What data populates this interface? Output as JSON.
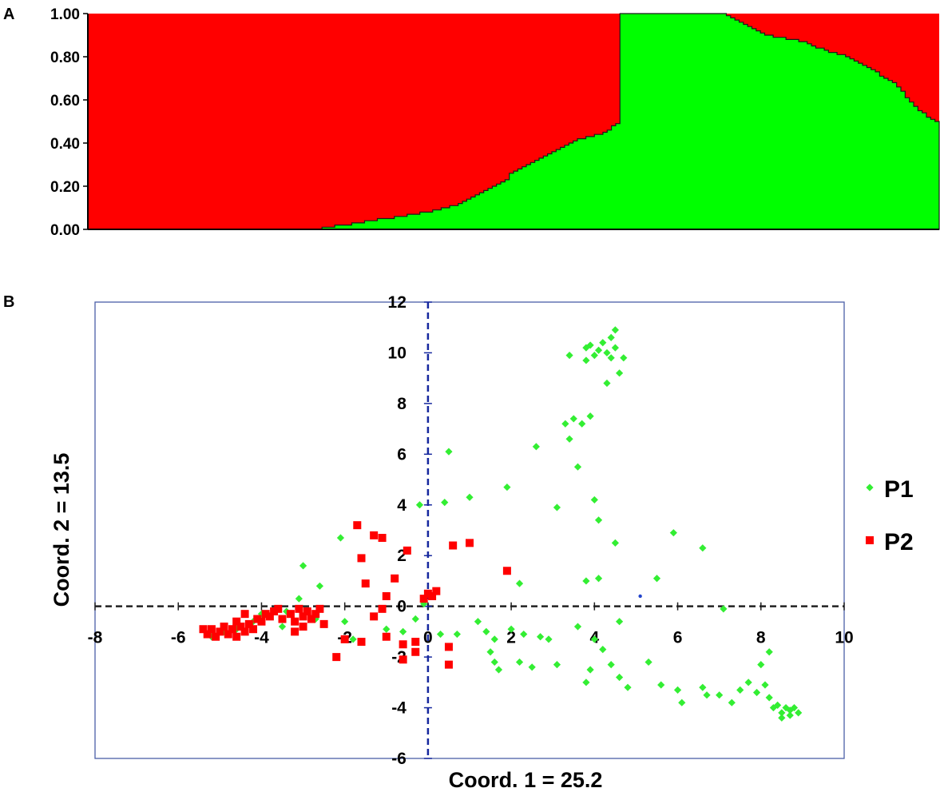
{
  "chart_data": [
    {
      "panel": "A",
      "type": "area",
      "yticks": [
        "0.00",
        "0.20",
        "0.40",
        "0.60",
        "0.80",
        "1.00"
      ],
      "ylim": [
        0,
        1
      ],
      "n_samples": 200,
      "series": [
        {
          "color": "#00ff00",
          "breakpoints": [
            [
              0.0,
              0.0
            ],
            [
              0.265,
              0.0
            ],
            [
              0.3,
              0.02
            ],
            [
              0.4,
              0.08
            ],
            [
              0.42,
              0.1
            ],
            [
              0.44,
              0.12
            ],
            [
              0.45,
              0.15
            ],
            [
              0.47,
              0.18
            ],
            [
              0.48,
              0.2
            ],
            [
              0.49,
              0.22
            ],
            [
              0.5,
              0.27
            ],
            [
              0.51,
              0.29
            ],
            [
              0.54,
              0.35
            ],
            [
              0.56,
              0.39
            ],
            [
              0.58,
              0.42
            ],
            [
              0.61,
              0.45
            ],
            [
              0.625,
              0.5
            ],
            [
              0.625,
              1.0
            ],
            [
              0.75,
              1.0
            ],
            [
              0.77,
              0.95
            ],
            [
              0.8,
              0.9
            ],
            [
              0.84,
              0.87
            ],
            [
              0.86,
              0.84
            ],
            [
              0.9,
              0.79
            ],
            [
              0.93,
              0.72
            ],
            [
              0.95,
              0.67
            ],
            [
              0.97,
              0.58
            ],
            [
              0.985,
              0.53
            ],
            [
              1.0,
              0.5
            ]
          ]
        },
        {
          "color": "#ff0000",
          "fill": "remainder"
        }
      ]
    },
    {
      "panel": "B",
      "type": "scatter",
      "xlabel": "Coord. 1 = 25.2",
      "ylabel": "Coord. 2 = 13.5",
      "xlim": [
        -8,
        10
      ],
      "ylim": [
        -6,
        12
      ],
      "xticks": [
        "-8",
        "-6",
        "-4",
        "-2",
        "0",
        "2",
        "4",
        "6",
        "8",
        "10"
      ],
      "yticks": [
        "-6",
        "-4",
        "-2",
        "0",
        "2",
        "4",
        "6",
        "8",
        "10",
        "12"
      ],
      "series": [
        {
          "name": "P1",
          "color": "#33ee33",
          "marker": "diamond",
          "points": [
            [
              3.4,
              9.9
            ],
            [
              3.8,
              10.2
            ],
            [
              3.9,
              10.3
            ],
            [
              4.0,
              9.9
            ],
            [
              4.1,
              10.1
            ],
            [
              4.2,
              10.4
            ],
            [
              4.3,
              10.0
            ],
            [
              4.4,
              10.6
            ],
            [
              4.5,
              10.9
            ],
            [
              4.5,
              10.2
            ],
            [
              4.4,
              9.8
            ],
            [
              4.7,
              9.8
            ],
            [
              4.6,
              9.2
            ],
            [
              4.3,
              8.8
            ],
            [
              3.8,
              9.7
            ],
            [
              3.3,
              7.2
            ],
            [
              3.5,
              7.4
            ],
            [
              3.7,
              7.2
            ],
            [
              3.9,
              7.5
            ],
            [
              3.4,
              6.6
            ],
            [
              2.6,
              6.3
            ],
            [
              3.6,
              5.5
            ],
            [
              0.5,
              6.1
            ],
            [
              0.4,
              4.1
            ],
            [
              1.0,
              4.3
            ],
            [
              -0.2,
              4.0
            ],
            [
              1.9,
              4.7
            ],
            [
              3.1,
              3.9
            ],
            [
              4.0,
              4.2
            ],
            [
              4.1,
              3.4
            ],
            [
              4.5,
              2.5
            ],
            [
              5.9,
              2.9
            ],
            [
              6.6,
              2.3
            ],
            [
              5.5,
              1.1
            ],
            [
              4.1,
              1.1
            ],
            [
              3.8,
              1.0
            ],
            [
              2.2,
              0.9
            ],
            [
              -3.0,
              1.6
            ],
            [
              -2.6,
              0.8
            ],
            [
              -2.1,
              2.7
            ],
            [
              -0.1,
              0.1
            ],
            [
              -3.1,
              0.3
            ],
            [
              -3.4,
              -0.2
            ],
            [
              -3.8,
              -0.4
            ],
            [
              -5.2,
              -1.2
            ],
            [
              -4.9,
              -1.0
            ],
            [
              -4.6,
              -0.9
            ],
            [
              -4.2,
              -0.6
            ],
            [
              -2.7,
              -0.5
            ],
            [
              -2.0,
              -0.6
            ],
            [
              -1.8,
              -1.3
            ],
            [
              -1.0,
              -0.9
            ],
            [
              -0.6,
              -1.0
            ],
            [
              0.3,
              -1.1
            ],
            [
              0.7,
              -1.1
            ],
            [
              1.2,
              -0.6
            ],
            [
              1.4,
              -1.0
            ],
            [
              1.6,
              -1.3
            ],
            [
              1.5,
              -1.8
            ],
            [
              1.6,
              -2.2
            ],
            [
              1.7,
              -2.5
            ],
            [
              2.3,
              -1.1
            ],
            [
              2.7,
              -1.2
            ],
            [
              2.9,
              -1.3
            ],
            [
              2.2,
              -2.2
            ],
            [
              2.5,
              -2.4
            ],
            [
              3.1,
              -2.3
            ],
            [
              3.6,
              -0.8
            ],
            [
              4.0,
              -1.3
            ],
            [
              4.2,
              -1.7
            ],
            [
              3.9,
              -2.5
            ],
            [
              3.8,
              -3.0
            ],
            [
              4.4,
              -2.3
            ],
            [
              4.6,
              -2.8
            ],
            [
              4.8,
              -3.2
            ],
            [
              5.3,
              -2.2
            ],
            [
              5.6,
              -3.1
            ],
            [
              6.0,
              -3.3
            ],
            [
              6.1,
              -3.8
            ],
            [
              6.6,
              -3.2
            ],
            [
              6.7,
              -3.5
            ],
            [
              7.0,
              -3.5
            ],
            [
              7.3,
              -3.8
            ],
            [
              7.5,
              -3.3
            ],
            [
              7.7,
              -3.0
            ],
            [
              7.9,
              -3.4
            ],
            [
              8.2,
              -3.6
            ],
            [
              8.4,
              -3.9
            ],
            [
              8.5,
              -4.2
            ],
            [
              8.6,
              -4.0
            ],
            [
              8.7,
              -4.3
            ],
            [
              8.8,
              -4.0
            ],
            [
              8.9,
              -4.2
            ],
            [
              8.3,
              -4.0
            ],
            [
              8.5,
              -4.4
            ],
            [
              8.7,
              -4.1
            ],
            [
              8.1,
              -3.1
            ],
            [
              8.0,
              -2.3
            ],
            [
              8.2,
              -1.8
            ],
            [
              7.1,
              -0.1
            ],
            [
              4.6,
              -0.6
            ],
            [
              2.0,
              -0.9
            ],
            [
              -0.3,
              -0.5
            ],
            [
              -4.0,
              -0.3
            ],
            [
              -3.5,
              -0.8
            ]
          ]
        },
        {
          "name": "P2",
          "color": "#ff0000",
          "marker": "square",
          "points": [
            [
              -1.7,
              3.2
            ],
            [
              -1.3,
              2.8
            ],
            [
              -1.6,
              1.9
            ],
            [
              -0.8,
              1.1
            ],
            [
              -1.5,
              0.9
            ],
            [
              -1.0,
              0.4
            ],
            [
              -1.1,
              -0.1
            ],
            [
              -1.3,
              -0.4
            ],
            [
              -1.6,
              -1.4
            ],
            [
              -1.0,
              -1.2
            ],
            [
              -0.6,
              -1.5
            ],
            [
              -0.3,
              -1.4
            ],
            [
              -0.3,
              -1.8
            ],
            [
              -0.6,
              -2.1
            ],
            [
              -0.1,
              0.3
            ],
            [
              0.1,
              0.4
            ],
            [
              0.2,
              0.6
            ],
            [
              0.0,
              0.5
            ],
            [
              0.6,
              2.4
            ],
            [
              1.0,
              2.5
            ],
            [
              1.9,
              1.4
            ],
            [
              -1.1,
              2.7
            ],
            [
              -0.5,
              2.2
            ],
            [
              -2.5,
              -0.7
            ],
            [
              -2.0,
              -1.3
            ],
            [
              -2.2,
              -2.0
            ],
            [
              0.5,
              -1.6
            ],
            [
              0.5,
              -2.3
            ],
            [
              -5.3,
              -1.1
            ],
            [
              -5.2,
              -0.9
            ],
            [
              -5.1,
              -1.2
            ],
            [
              -5.0,
              -1.0
            ],
            [
              -4.9,
              -0.8
            ],
            [
              -4.8,
              -1.1
            ],
            [
              -4.7,
              -0.9
            ],
            [
              -4.6,
              -1.2
            ],
            [
              -4.5,
              -0.8
            ],
            [
              -4.4,
              -1.0
            ],
            [
              -4.3,
              -0.7
            ],
            [
              -4.2,
              -0.9
            ],
            [
              -4.1,
              -0.5
            ],
            [
              -4.0,
              -0.6
            ],
            [
              -3.9,
              -0.3
            ],
            [
              -3.8,
              -0.4
            ],
            [
              -3.7,
              -0.2
            ],
            [
              -3.5,
              -0.5
            ],
            [
              -3.3,
              -0.3
            ],
            [
              -3.2,
              -0.6
            ],
            [
              -3.1,
              -0.1
            ],
            [
              -3.0,
              -0.4
            ],
            [
              -2.9,
              -0.2
            ],
            [
              -2.8,
              -0.5
            ],
            [
              -2.7,
              -0.3
            ],
            [
              -2.6,
              -0.1
            ],
            [
              -3.2,
              -1.0
            ],
            [
              -3.0,
              -0.8
            ],
            [
              -3.6,
              -0.1
            ],
            [
              -4.4,
              -0.3
            ],
            [
              -4.6,
              -0.6
            ],
            [
              -5.4,
              -0.9
            ]
          ]
        },
        {
          "color": "#2244cc",
          "marker": "dot",
          "points": [
            [
              5.1,
              0.4
            ]
          ]
        }
      ],
      "legend": "right"
    }
  ],
  "labels": {
    "panel_a": "A",
    "panel_b": "B"
  }
}
